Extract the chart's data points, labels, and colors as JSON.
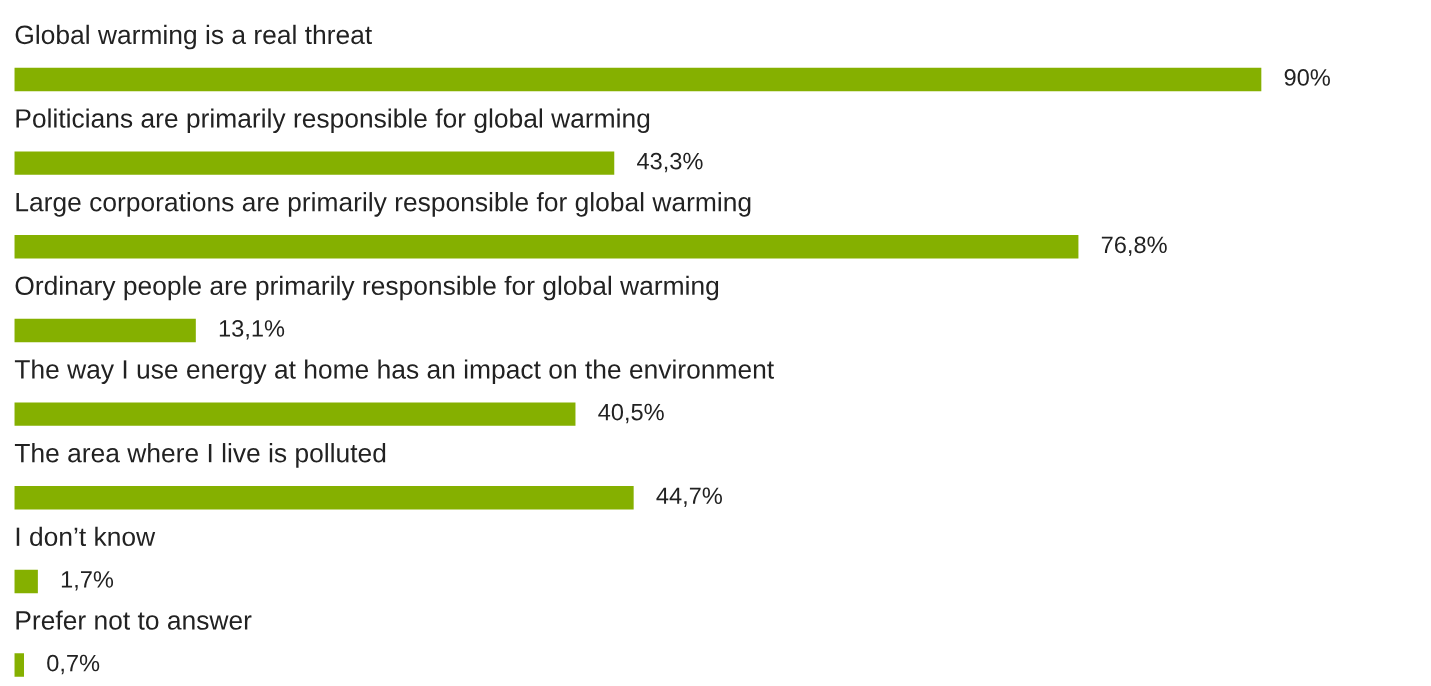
{
  "chart_data": {
    "type": "bar",
    "orientation": "horizontal",
    "tick_labels": false,
    "categories": [
      "Global warming is a real threat",
      "Politicians are primarily responsible for global warming",
      "Large corporations are primarily responsible for global warming",
      "Ordinary people are primarily responsible for global warming",
      "The way I use energy at home has an impact on the environment",
      "The area where I live is polluted",
      "I don’t know",
      "Prefer not to answer"
    ],
    "values": [
      90,
      43.3,
      76.8,
      13.1,
      40.5,
      44.7,
      1.7,
      0.7
    ],
    "value_labels": [
      "90%",
      "43,3%",
      "76,8%",
      "13,1%",
      "40,5%",
      "44,7%",
      "1,7%",
      "0,7%"
    ],
    "color": "#85b000"
  }
}
